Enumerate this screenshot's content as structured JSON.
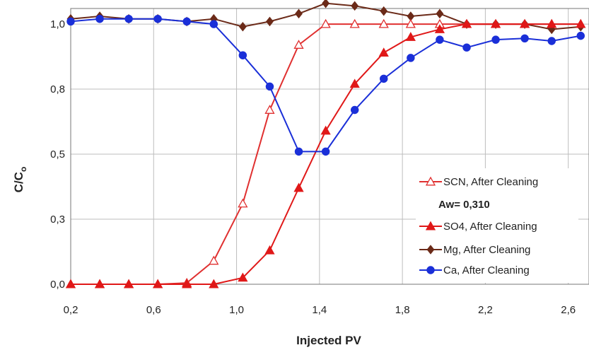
{
  "chart_data": {
    "type": "line",
    "xlabel": "Injected PV",
    "ylabel": "C/C",
    "ylabel_sub": "o",
    "xlim": [
      0.2,
      2.7
    ],
    "ylim": [
      0.0,
      1.06
    ],
    "x_ticks": [
      0.2,
      0.6,
      1.0,
      1.4,
      1.8,
      2.2,
      2.6
    ],
    "x_tick_labels": [
      "0,2",
      "0,6",
      "1,0",
      "1,4",
      "1,8",
      "2,2",
      "2,6"
    ],
    "y_ticks": [
      0.0,
      0.25,
      0.5,
      0.75,
      1.0
    ],
    "y_tick_labels": [
      "0,0",
      "0,3",
      "0,5",
      "0,8",
      "1,0"
    ],
    "grid": true,
    "legend_position": "bottom-right",
    "legend_note": "Aw= 0,310",
    "series": [
      {
        "name": "SCN, After Cleaning",
        "color": "#e03030",
        "marker": "triangle-open",
        "x": [
          0.2,
          0.34,
          0.48,
          0.62,
          0.76,
          0.89,
          1.03,
          1.16,
          1.3,
          1.43,
          1.57,
          1.71,
          1.84,
          1.98,
          2.11,
          2.25,
          2.39,
          2.52,
          2.66
        ],
        "y": [
          0.0,
          0.0,
          0.0,
          0.0,
          0.005,
          0.09,
          0.31,
          0.67,
          0.92,
          1.0,
          1.0,
          1.0,
          1.0,
          1.0,
          1.0,
          1.0,
          1.0,
          1.0,
          1.0
        ]
      },
      {
        "name": "SO4, After Cleaning",
        "color": "#e01818",
        "marker": "triangle-filled",
        "x": [
          0.2,
          0.34,
          0.48,
          0.62,
          0.76,
          0.89,
          1.03,
          1.16,
          1.3,
          1.43,
          1.57,
          1.71,
          1.84,
          1.98,
          2.11,
          2.25,
          2.39,
          2.52,
          2.66
        ],
        "y": [
          0.0,
          0.0,
          0.0,
          0.0,
          0.0,
          0.0,
          0.025,
          0.13,
          0.37,
          0.59,
          0.77,
          0.89,
          0.95,
          0.98,
          1.0,
          1.0,
          1.0,
          1.0,
          1.0
        ]
      },
      {
        "name": "Mg, After Cleaning",
        "color": "#6b2a18",
        "marker": "diamond",
        "x": [
          0.2,
          0.34,
          0.48,
          0.62,
          0.76,
          0.89,
          1.03,
          1.16,
          1.3,
          1.43,
          1.57,
          1.71,
          1.84,
          1.98,
          2.11,
          2.25,
          2.39,
          2.52,
          2.66
        ],
        "y": [
          1.02,
          1.03,
          1.02,
          1.02,
          1.01,
          1.02,
          0.99,
          1.01,
          1.04,
          1.08,
          1.07,
          1.05,
          1.03,
          1.04,
          1.0,
          1.0,
          1.0,
          0.98,
          0.99
        ]
      },
      {
        "name": "Ca, After Cleaning",
        "color": "#1a2fd8",
        "marker": "circle",
        "x": [
          0.2,
          0.34,
          0.48,
          0.62,
          0.76,
          0.89,
          1.03,
          1.16,
          1.3,
          1.43,
          1.57,
          1.71,
          1.84,
          1.98,
          2.11,
          2.25,
          2.39,
          2.52,
          2.66
        ],
        "y": [
          1.01,
          1.02,
          1.02,
          1.02,
          1.01,
          1.0,
          0.88,
          0.76,
          0.51,
          0.51,
          0.67,
          0.79,
          0.87,
          0.94,
          0.91,
          0.94,
          0.945,
          0.935,
          0.955
        ]
      }
    ]
  }
}
